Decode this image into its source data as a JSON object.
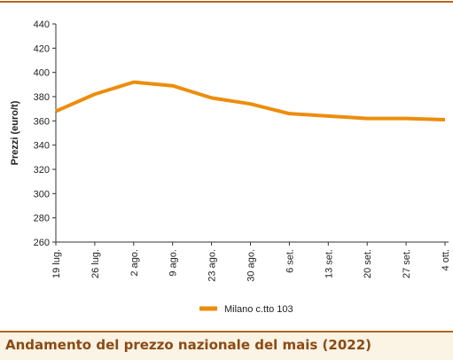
{
  "chart_data": {
    "type": "line",
    "categories": [
      "19 lug.",
      "26 lug.",
      "2 ago.",
      "9 ago.",
      "23 ago.",
      "30 ago.",
      "6 set.",
      "13 set.",
      "20 set.",
      "27 set.",
      "4 ott."
    ],
    "series": [
      {
        "name": "Milano  c.tto 103",
        "color": "#ec8d0c",
        "values": [
          368,
          382,
          392,
          389,
          379,
          374,
          366,
          364,
          362,
          362,
          361
        ]
      }
    ],
    "y_label": "Prezzi (euro/t)",
    "ylim": [
      260,
      440
    ],
    "yticks": [
      260,
      280,
      300,
      320,
      340,
      360,
      380,
      400,
      420,
      440
    ],
    "footer": "Andamento del prezzo nazionale del mais (2022)"
  }
}
